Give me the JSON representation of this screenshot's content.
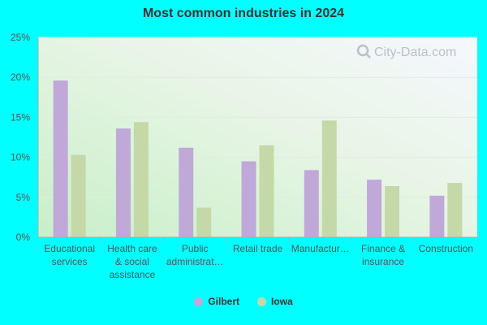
{
  "chart_data": {
    "type": "bar",
    "title": "Most common industries in 2024",
    "categories": [
      [
        "Educational",
        "services"
      ],
      [
        "Health care",
        "& social",
        "assistance"
      ],
      [
        "Public",
        "administrat…"
      ],
      [
        "Retail trade"
      ],
      [
        "Manufactur…"
      ],
      [
        "Finance &",
        "insurance"
      ],
      [
        "Construction"
      ]
    ],
    "series": [
      {
        "name": "Gilbert",
        "color": "#c0a8d8",
        "values": [
          19.6,
          13.6,
          11.2,
          9.5,
          8.4,
          7.2,
          5.2
        ]
      },
      {
        "name": "Iowa",
        "color": "#c5d9a8",
        "values": [
          10.3,
          14.4,
          3.7,
          11.5,
          14.6,
          6.4,
          6.8
        ]
      }
    ],
    "ylim": [
      0,
      25
    ],
    "yticks": [
      "0%",
      "5%",
      "10%",
      "15%",
      "20%",
      "25%"
    ],
    "grid": true,
    "legend_placement": "bottom"
  },
  "watermark": "City-Data.com"
}
